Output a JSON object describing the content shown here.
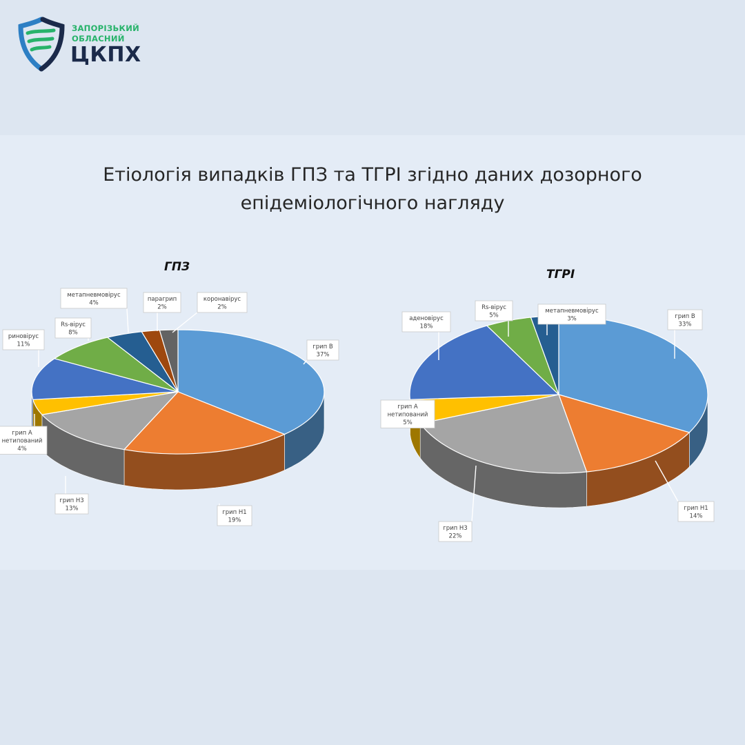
{
  "logo": {
    "line1": "ЗАПОРІЗЬКИЙ",
    "line2": "ОБЛАСНИЙ",
    "abbr": "ЦКПХ",
    "colors": {
      "green": "#27b36a",
      "navy": "#1b2a4a",
      "blue": "#2d7fc4"
    }
  },
  "title": {
    "line1": "Етіологія випадків ГПЗ та ТГРІ згідно даних дозорного",
    "line2": "епідеміологічного нагляду"
  },
  "chart_data": [
    {
      "type": "pie",
      "title": "ГПЗ",
      "style": "3d",
      "slices": [
        {
          "label": "грип B",
          "value": 37,
          "pct_label": "37%",
          "color": "#5b9bd5"
        },
        {
          "label": "грип H1",
          "value": 19,
          "pct_label": "19%",
          "color": "#ed7d31"
        },
        {
          "label": "грип H3",
          "value": 13,
          "pct_label": "13%",
          "color": "#a5a5a5"
        },
        {
          "label": "грип А нетипований",
          "value": 4,
          "pct_label": "4%",
          "color": "#ffc000"
        },
        {
          "label": "риновірус",
          "value": 11,
          "pct_label": "11%",
          "color": "#4472c4"
        },
        {
          "label": "Rs-вірус",
          "value": 8,
          "pct_label": "8%",
          "color": "#70ad47"
        },
        {
          "label": "метапневмовірус",
          "value": 4,
          "pct_label": "4%",
          "color": "#255e91"
        },
        {
          "label": "парагрип",
          "value": 2,
          "pct_label": "2%",
          "color": "#9e480e"
        },
        {
          "label": "коронавірус",
          "value": 2,
          "pct_label": "2%",
          "color": "#636363"
        }
      ]
    },
    {
      "type": "pie",
      "title": "ТГРІ",
      "style": "3d",
      "slices": [
        {
          "label": "грип B",
          "value": 33,
          "pct_label": "33%",
          "color": "#5b9bd5"
        },
        {
          "label": "грип H1",
          "value": 14,
          "pct_label": "14%",
          "color": "#ed7d31"
        },
        {
          "label": "грип H3",
          "value": 22,
          "pct_label": "22%",
          "color": "#a5a5a5"
        },
        {
          "label": "грип А нетипований",
          "value": 5,
          "pct_label": "5%",
          "color": "#ffc000"
        },
        {
          "label": "аденовірус",
          "value": 18,
          "pct_label": "18%",
          "color": "#4472c4"
        },
        {
          "label": "Rs-вірус",
          "value": 5,
          "pct_label": "5%",
          "color": "#70ad47"
        },
        {
          "label": "метапневмовірус",
          "value": 3,
          "pct_label": "3%",
          "color": "#255e91"
        }
      ]
    }
  ]
}
